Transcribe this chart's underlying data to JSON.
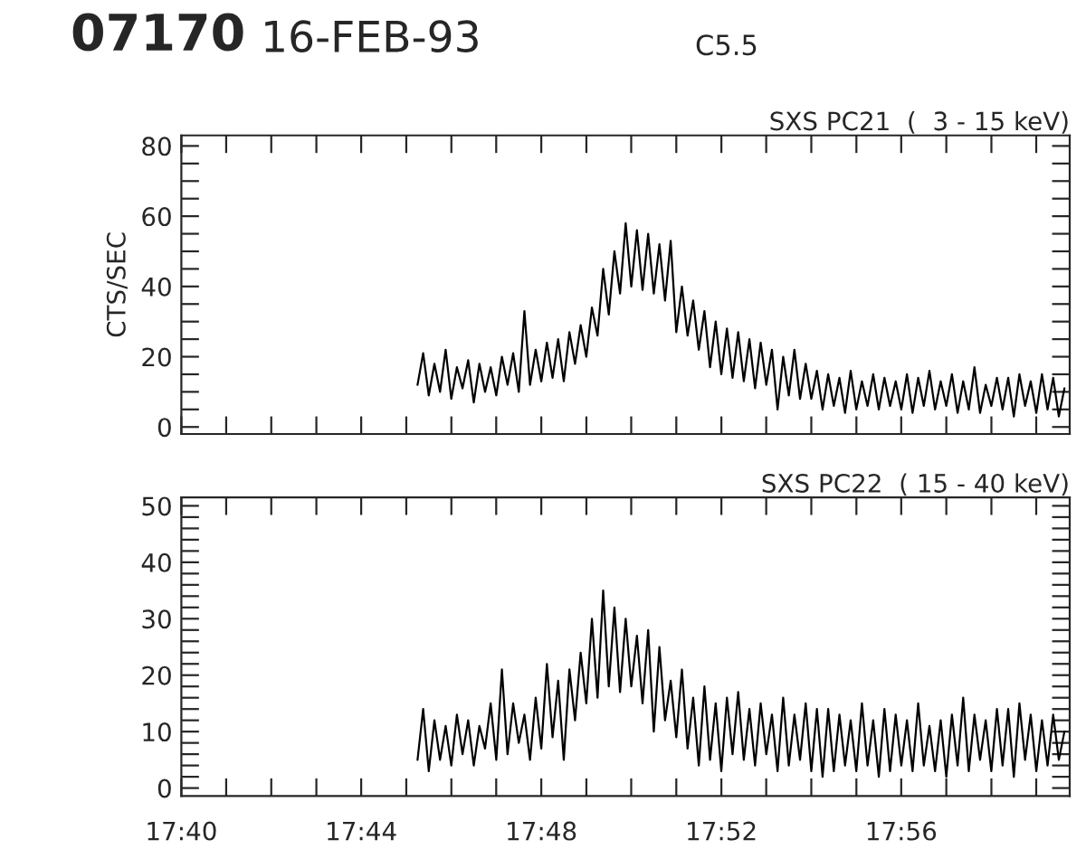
{
  "chart_data": [
    {
      "type": "line",
      "title": "SXS PC21  (  3 - 15 keV)",
      "ylabel": "CTS/SEC",
      "annotations": [
        "07170",
        "16-FEB-93",
        "C5.5"
      ],
      "tick_labels": "y",
      "x": [
        17.75417,
        17.75625,
        17.75833,
        17.76042,
        17.7625,
        17.76458,
        17.76667,
        17.76875,
        17.77083,
        17.77292,
        17.775,
        17.77708,
        17.77917,
        17.78125,
        17.78333,
        17.78542,
        17.7875,
        17.78958,
        17.79167,
        17.79375,
        17.79583,
        17.79792,
        17.8,
        17.80208,
        17.80417,
        17.80625,
        17.80833,
        17.81042,
        17.8125,
        17.81458,
        17.81667,
        17.81875,
        17.82083,
        17.82292,
        17.825,
        17.82708,
        17.82917,
        17.83125,
        17.83333,
        17.83542,
        17.8375,
        17.83958,
        17.84167,
        17.84375,
        17.84583,
        17.84792,
        17.85,
        17.85208,
        17.85417,
        17.85625,
        17.85833,
        17.86042,
        17.8625,
        17.86458,
        17.86667,
        17.86875,
        17.87083,
        17.87292,
        17.875,
        17.87708,
        17.87917,
        17.88125,
        17.88333,
        17.88542,
        17.8875,
        17.88958,
        17.89167,
        17.89375,
        17.89583,
        17.89792,
        17.9,
        17.90208,
        17.90417,
        17.90625,
        17.90833,
        17.91042,
        17.9125,
        17.91458,
        17.91667,
        17.91875,
        17.92083,
        17.92292,
        17.925,
        17.92708,
        17.92917,
        17.93125,
        17.93333,
        17.93542,
        17.9375,
        17.93958,
        17.94167,
        17.94375,
        17.94583,
        17.94792,
        17.95,
        17.95208,
        17.95417,
        17.95625,
        17.95833,
        17.96042,
        17.9625,
        17.96458,
        17.96667,
        17.96875,
        17.97083,
        17.97292,
        17.975,
        17.97708,
        17.97917,
        17.98125,
        17.98333,
        17.98542,
        17.9875,
        17.98958,
        17.99167,
        17.99375
      ],
      "series": [
        {
          "color": "#000000",
          "values": [
            12,
            21,
            9,
            18,
            10,
            22,
            8,
            17,
            11,
            19,
            7,
            18,
            10,
            17,
            9,
            20,
            12,
            21,
            10,
            33,
            12,
            22,
            13,
            24,
            14,
            25,
            13,
            27,
            18,
            29,
            20,
            34,
            26,
            45,
            32,
            50,
            38,
            58,
            40,
            56,
            39,
            55,
            38,
            52,
            36,
            53,
            27,
            40,
            26,
            36,
            22,
            33,
            17,
            30,
            15,
            28,
            14,
            27,
            13,
            25,
            11,
            24,
            12,
            22,
            5,
            20,
            9,
            22,
            8,
            18,
            8,
            16,
            5,
            15,
            6,
            14,
            4,
            16,
            5,
            13,
            6,
            15,
            5,
            14,
            6,
            13,
            5,
            15,
            4,
            14,
            6,
            16,
            5,
            13,
            6,
            15,
            4,
            13,
            5,
            17,
            4,
            12,
            6,
            14,
            5,
            14,
            3,
            15,
            6,
            13,
            4,
            15,
            5,
            14,
            3,
            11
          ]
        }
      ],
      "xlim": [
        17.6667,
        17.9957
      ],
      "ylim": [
        -2,
        83
      ],
      "xticks": [
        {
          "value": 17.6667,
          "label": null
        },
        {
          "value": 17.6833,
          "label": null
        },
        {
          "value": 17.7,
          "label": null
        },
        {
          "value": 17.7167,
          "label": null
        },
        {
          "value": 17.7333,
          "label": null
        },
        {
          "value": 17.75,
          "label": null
        },
        {
          "value": 17.7667,
          "label": null
        },
        {
          "value": 17.7833,
          "label": null
        },
        {
          "value": 17.8,
          "label": null
        },
        {
          "value": 17.8167,
          "label": null
        },
        {
          "value": 17.8333,
          "label": null
        },
        {
          "value": 17.85,
          "label": null
        },
        {
          "value": 17.8667,
          "label": null
        },
        {
          "value": 17.8833,
          "label": null
        },
        {
          "value": 17.9,
          "label": null
        },
        {
          "value": 17.9167,
          "label": null
        },
        {
          "value": 17.9333,
          "label": null
        },
        {
          "value": 17.95,
          "label": null
        },
        {
          "value": 17.9667,
          "label": null
        },
        {
          "value": 17.9833,
          "label": null
        }
      ],
      "yticks": [
        0,
        {
          "value": 5,
          "label": null
        },
        {
          "value": 10,
          "label": null
        },
        {
          "value": 15,
          "label": null
        },
        20,
        {
          "value": 25,
          "label": null
        },
        {
          "value": 30,
          "label": null
        },
        {
          "value": 35,
          "label": null
        },
        40,
        {
          "value": 45,
          "label": null
        },
        {
          "value": 50,
          "label": null
        },
        {
          "value": 55,
          "label": null
        },
        60,
        {
          "value": 65,
          "label": null
        },
        {
          "value": 70,
          "label": null
        },
        {
          "value": 75,
          "label": null
        },
        80
      ]
    },
    {
      "type": "line",
      "title": "SXS PC22  ( 15 - 40 keV)",
      "x": [
        17.75417,
        17.75625,
        17.75833,
        17.76042,
        17.7625,
        17.76458,
        17.76667,
        17.76875,
        17.77083,
        17.77292,
        17.775,
        17.77708,
        17.77917,
        17.78125,
        17.78333,
        17.78542,
        17.7875,
        17.78958,
        17.79167,
        17.79375,
        17.79583,
        17.79792,
        17.8,
        17.80208,
        17.80417,
        17.80625,
        17.80833,
        17.81042,
        17.8125,
        17.81458,
        17.81667,
        17.81875,
        17.82083,
        17.82292,
        17.825,
        17.82708,
        17.82917,
        17.83125,
        17.83333,
        17.83542,
        17.8375,
        17.83958,
        17.84167,
        17.84375,
        17.84583,
        17.84792,
        17.85,
        17.85208,
        17.85417,
        17.85625,
        17.85833,
        17.86042,
        17.8625,
        17.86458,
        17.86667,
        17.86875,
        17.87083,
        17.87292,
        17.875,
        17.87708,
        17.87917,
        17.88125,
        17.88333,
        17.88542,
        17.8875,
        17.88958,
        17.89167,
        17.89375,
        17.89583,
        17.89792,
        17.9,
        17.90208,
        17.90417,
        17.90625,
        17.90833,
        17.91042,
        17.9125,
        17.91458,
        17.91667,
        17.91875,
        17.92083,
        17.92292,
        17.925,
        17.92708,
        17.92917,
        17.93125,
        17.93333,
        17.93542,
        17.9375,
        17.93958,
        17.94167,
        17.94375,
        17.94583,
        17.94792,
        17.95,
        17.95208,
        17.95417,
        17.95625,
        17.95833,
        17.96042,
        17.9625,
        17.96458,
        17.96667,
        17.96875,
        17.97083,
        17.97292,
        17.975,
        17.97708,
        17.97917,
        17.98125,
        17.98333,
        17.98542,
        17.9875,
        17.98958,
        17.99167,
        17.99375
      ],
      "series": [
        {
          "color": "#000000",
          "values": [
            5,
            14,
            3,
            12,
            5,
            11,
            4,
            13,
            6,
            12,
            4,
            11,
            7,
            15,
            5,
            21,
            6,
            15,
            8,
            13,
            5,
            16,
            7,
            22,
            9,
            19,
            5,
            21,
            12,
            24,
            15,
            30,
            16,
            35,
            18,
            32,
            17,
            30,
            18,
            27,
            15,
            28,
            10,
            25,
            12,
            19,
            9,
            21,
            7,
            16,
            4,
            18,
            5,
            15,
            3,
            16,
            6,
            17,
            5,
            14,
            4,
            15,
            6,
            13,
            3,
            16,
            4,
            13,
            5,
            15,
            3,
            14,
            2,
            14,
            3,
            13,
            4,
            12,
            3,
            15,
            4,
            12,
            2,
            14,
            3,
            13,
            4,
            12,
            3,
            15,
            4,
            11,
            3,
            12,
            2,
            13,
            4,
            16,
            3,
            13,
            5,
            12,
            3,
            14,
            4,
            14,
            2,
            15,
            5,
            13,
            3,
            12,
            4,
            13,
            5,
            10
          ]
        }
      ],
      "xlim": [
        17.6667,
        17.9957
      ],
      "ylim": [
        -1.4,
        51.5
      ],
      "xticks": [
        {
          "value": 17.6667,
          "label": "17:40"
        },
        {
          "value": 17.6833,
          "label": null
        },
        {
          "value": 17.7,
          "label": null
        },
        {
          "value": 17.7167,
          "label": null
        },
        {
          "value": 17.7333,
          "label": "17:44"
        },
        {
          "value": 17.75,
          "label": null
        },
        {
          "value": 17.7667,
          "label": null
        },
        {
          "value": 17.7833,
          "label": null
        },
        {
          "value": 17.8,
          "label": "17:48"
        },
        {
          "value": 17.8167,
          "label": null
        },
        {
          "value": 17.8333,
          "label": null
        },
        {
          "value": 17.85,
          "label": null
        },
        {
          "value": 17.8667,
          "label": "17:52"
        },
        {
          "value": 17.8833,
          "label": null
        },
        {
          "value": 17.9,
          "label": null
        },
        {
          "value": 17.9167,
          "label": null
        },
        {
          "value": 17.9333,
          "label": "17:56"
        },
        {
          "value": 17.95,
          "label": null
        },
        {
          "value": 17.9667,
          "label": null
        },
        {
          "value": 17.9833,
          "label": null
        }
      ],
      "yticks": [
        0,
        {
          "value": 2,
          "label": null
        },
        {
          "value": 4,
          "label": null
        },
        {
          "value": 6,
          "label": null
        },
        {
          "value": 8,
          "label": null
        },
        10,
        {
          "value": 12,
          "label": null
        },
        {
          "value": 14,
          "label": null
        },
        {
          "value": 16,
          "label": null
        },
        {
          "value": 18,
          "label": null
        },
        20,
        {
          "value": 22,
          "label": null
        },
        {
          "value": 24,
          "label": null
        },
        {
          "value": 26,
          "label": null
        },
        {
          "value": 28,
          "label": null
        },
        30,
        {
          "value": 32,
          "label": null
        },
        {
          "value": 34,
          "label": null
        },
        {
          "value": 36,
          "label": null
        },
        {
          "value": 38,
          "label": null
        },
        40,
        {
          "value": 42,
          "label": null
        },
        {
          "value": 44,
          "label": null
        },
        {
          "value": 46,
          "label": null
        },
        {
          "value": 48,
          "label": null
        },
        50
      ]
    }
  ]
}
